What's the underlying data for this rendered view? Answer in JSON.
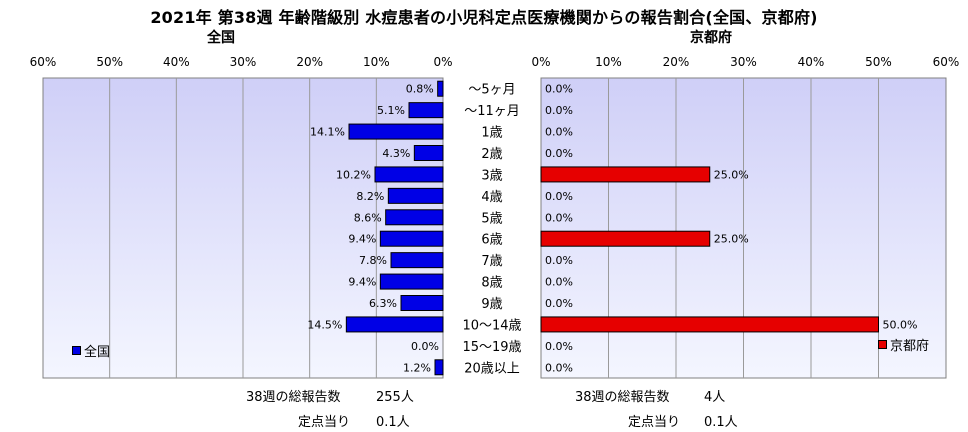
{
  "title": "2021年 第38週 年齢階級別 水痘患者の小児科定点医療機関からの報告割合(全国、京都府)",
  "colors": {
    "plot_bg_top": "#cfcff7",
    "plot_bg_bottom": "#f4f6ff",
    "national_bar": "#0000e6",
    "kyoto_bar": "#e60000"
  },
  "footer": {
    "national_total_label": "38週の総報告数",
    "national_total_value": "255人",
    "national_per_label": "定点当り",
    "national_per_value": "0.1人",
    "kyoto_total_label": "38週の総報告数",
    "kyoto_total_value": "4人",
    "kyoto_per_label": "定点当り",
    "kyoto_per_value": "0.1人"
  },
  "chart_data": [
    {
      "type": "bar",
      "orientation": "horizontal-reversed",
      "title": "全国",
      "categories": [
        "～5ヶ月",
        "～11ヶ月",
        "1歳",
        "2歳",
        "3歳",
        "4歳",
        "5歳",
        "6歳",
        "7歳",
        "8歳",
        "9歳",
        "10～14歳",
        "15～19歳",
        "20歳以上"
      ],
      "series": [
        {
          "name": "全国",
          "values": [
            0.8,
            5.1,
            14.1,
            4.3,
            10.2,
            8.2,
            8.6,
            9.4,
            7.8,
            9.4,
            6.3,
            14.5,
            0.0,
            1.2
          ],
          "labels": [
            "0.8%",
            "5.1%",
            "14.1%",
            "4.3%",
            "10.2%",
            "8.2%",
            "8.6%",
            "9.4%",
            "7.8%",
            "9.4%",
            "6.3%",
            "14.5%",
            "0.0%",
            "1.2%"
          ]
        }
      ],
      "xlim": [
        0,
        60
      ],
      "ticks": [
        "60%",
        "50%",
        "40%",
        "30%",
        "20%",
        "10%",
        "0%"
      ],
      "grid": true,
      "legend": "bottom-left"
    },
    {
      "type": "bar",
      "orientation": "horizontal",
      "title": "京都府",
      "categories": [
        "～5ヶ月",
        "～11ヶ月",
        "1歳",
        "2歳",
        "3歳",
        "4歳",
        "5歳",
        "6歳",
        "7歳",
        "8歳",
        "9歳",
        "10～14歳",
        "15～19歳",
        "20歳以上"
      ],
      "series": [
        {
          "name": "京都府",
          "values": [
            0.0,
            0.0,
            0.0,
            0.0,
            25.0,
            0.0,
            0.0,
            25.0,
            0.0,
            0.0,
            0.0,
            50.0,
            0.0,
            0.0
          ],
          "labels": [
            "0.0%",
            "0.0%",
            "0.0%",
            "0.0%",
            "25.0%",
            "0.0%",
            "0.0%",
            "25.0%",
            "0.0%",
            "0.0%",
            "0.0%",
            "50.0%",
            "0.0%",
            "0.0%"
          ]
        }
      ],
      "xlim": [
        0,
        60
      ],
      "ticks": [
        "0%",
        "10%",
        "20%",
        "30%",
        "40%",
        "50%",
        "60%"
      ],
      "grid": true,
      "legend": "bottom-right"
    }
  ]
}
